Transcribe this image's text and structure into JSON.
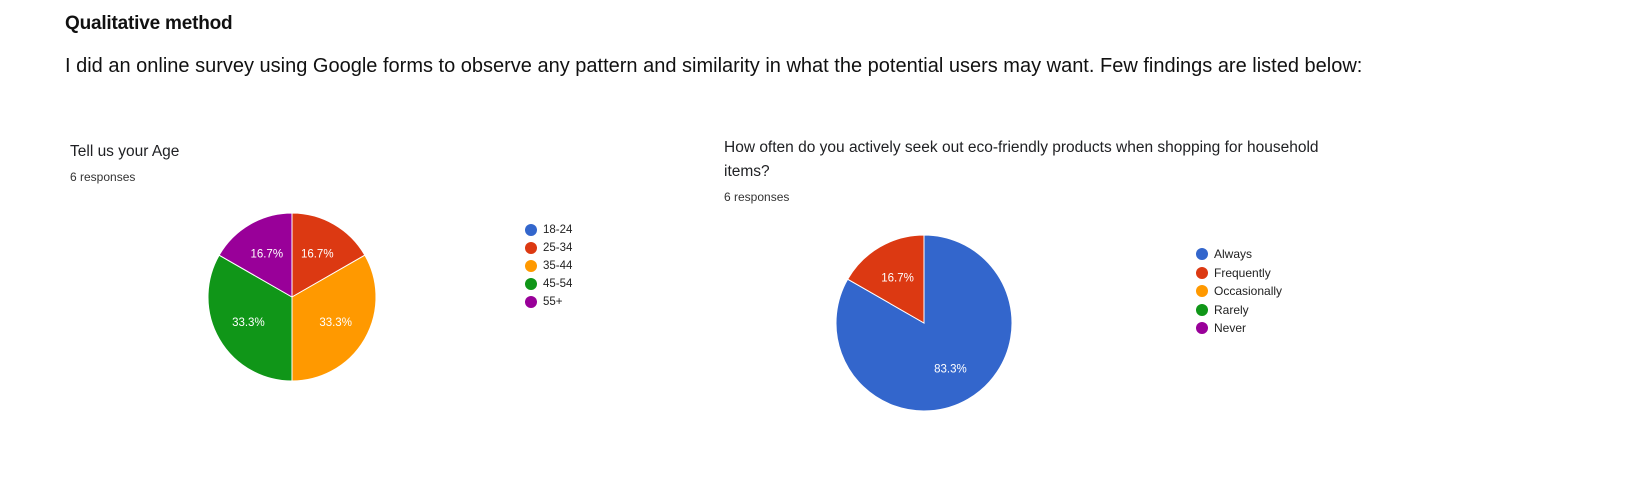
{
  "page": {
    "heading": "Qualitative method",
    "intro": "I did an online survey using Google forms to observe any pattern and similarity in what the potential users may want. Few findings are listed below:"
  },
  "chart_data": [
    {
      "type": "pie",
      "title": "Tell us your Age",
      "subtitle": "6 responses",
      "categories": [
        "18-24",
        "25-34",
        "35-44",
        "45-54",
        "55+"
      ],
      "values": [
        0,
        16.7,
        33.3,
        33.3,
        16.7
      ],
      "labels": [
        "",
        "16.7%",
        "33.3%",
        "33.3%",
        "16.7%"
      ],
      "colors": [
        "#3366cc",
        "#dc3912",
        "#ff9900",
        "#109618",
        "#990099"
      ],
      "legend": "right"
    },
    {
      "type": "pie",
      "title": "How often do you actively seek out eco-friendly products when shopping for household items?",
      "subtitle": "6 responses",
      "categories": [
        "Always",
        "Frequently",
        "Occasionally",
        "Rarely",
        "Never"
      ],
      "values": [
        83.3,
        16.7,
        0,
        0,
        0
      ],
      "labels": [
        "83.3%",
        "16.7%",
        "",
        "",
        ""
      ],
      "colors": [
        "#3366cc",
        "#dc3912",
        "#ff9900",
        "#109618",
        "#990099"
      ],
      "legend": "right"
    }
  ]
}
